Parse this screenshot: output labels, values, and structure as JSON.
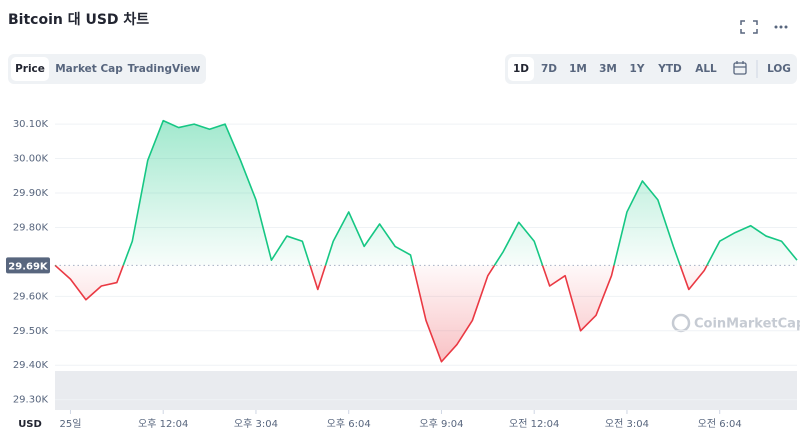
{
  "chart_data": {
    "type": "line",
    "title": "Bitcoin 대 USD 차트",
    "currency": "USD",
    "x": [
      -0.5,
      0,
      0.5,
      1,
      1.5,
      2,
      2.5,
      3,
      3.5,
      4,
      4.5,
      5,
      5.5,
      6,
      6.5,
      7,
      7.5,
      8,
      8.5,
      9,
      9.5,
      10,
      10.5,
      11,
      11.5,
      12,
      12.5,
      13,
      13.5,
      14,
      14.5,
      15,
      15.5,
      16,
      16.5,
      17,
      17.5,
      18,
      18.5,
      19,
      19.5,
      20,
      20.5,
      21,
      21.5,
      22,
      22.5,
      23,
      23.5
    ],
    "values": [
      29690,
      29650,
      29590,
      29630,
      29640,
      29760,
      29995,
      30110,
      30090,
      30100,
      30085,
      30100,
      29995,
      29880,
      29705,
      29775,
      29760,
      29620,
      29760,
      29845,
      29745,
      29810,
      29745,
      29720,
      29530,
      29410,
      29460,
      29530,
      29660,
      29730,
      29815,
      29760,
      29630,
      29660,
      29500,
      29545,
      29660,
      29845,
      29935,
      29880,
      29745,
      29620,
      29675,
      29760,
      29785,
      29805,
      29775,
      29760,
      29705
    ],
    "baseline": 29690,
    "baseline_label": "29.69K",
    "color_up": "#16c784",
    "color_down": "#ea3943",
    "xlim": [
      -0.5,
      23.5
    ],
    "xticks": [
      {
        "value": 0,
        "label": "25일"
      },
      {
        "value": 3,
        "label": "오후 12:04"
      },
      {
        "value": 6,
        "label": "오후 3:04"
      },
      {
        "value": 9,
        "label": "오후 6:04"
      },
      {
        "value": 12,
        "label": "오후 9:04"
      },
      {
        "value": 15,
        "label": "오전 12:04"
      },
      {
        "value": 18,
        "label": "오전 3:04"
      },
      {
        "value": 21,
        "label": "오전 6:04"
      }
    ],
    "ylim": [
      29270,
      30170
    ],
    "yticks": [
      {
        "value": 29300,
        "label": "29.30K"
      },
      {
        "value": 29400,
        "label": "29.40K"
      },
      {
        "value": 29500,
        "label": "29.50K"
      },
      {
        "value": 29600,
        "label": "29.60K"
      },
      {
        "value": 29800,
        "label": "29.80K"
      },
      {
        "value": 29900,
        "label": "29.90K"
      },
      {
        "value": 30000,
        "label": "30.00K"
      },
      {
        "value": 30100,
        "label": "30.10K"
      }
    ],
    "grid": true
  },
  "ui": {
    "tabs": [
      "Price",
      "Market Cap",
      "TradingView"
    ],
    "ranges": [
      "1D",
      "7D",
      "1M",
      "3M",
      "1Y",
      "YTD",
      "ALL"
    ],
    "log": "LOG",
    "watermark": "CoinMarketCap"
  }
}
